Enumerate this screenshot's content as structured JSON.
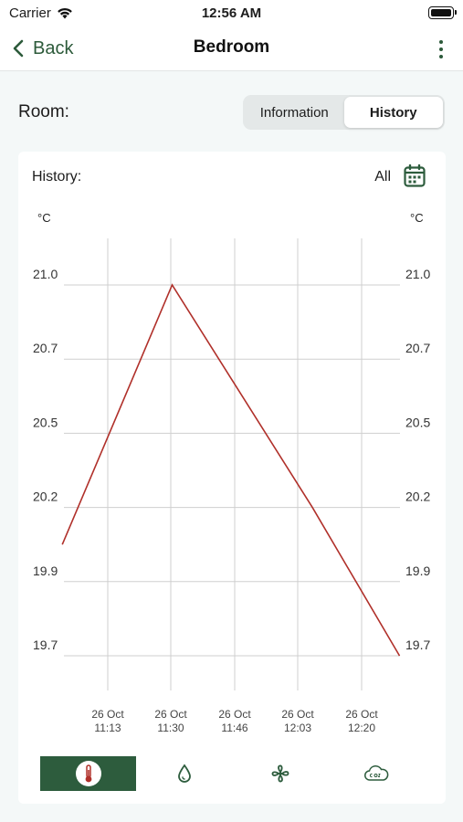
{
  "status_bar": {
    "carrier": "Carrier",
    "time": "12:56 AM"
  },
  "nav": {
    "back_label": "Back",
    "title": "Bedroom"
  },
  "room": {
    "label": "Room:",
    "segments": [
      {
        "label": "Information",
        "active": false
      },
      {
        "label": "History",
        "active": true
      }
    ]
  },
  "history": {
    "label": "History:",
    "range": "All"
  },
  "chart_data": {
    "type": "line",
    "left_unit": "°C",
    "right_unit": "°C",
    "y_ticks": [
      "21.0",
      "20.7",
      "20.5",
      "20.2",
      "19.9",
      "19.7"
    ],
    "x_ticks": [
      {
        "date": "26 Oct",
        "time": "11:13"
      },
      {
        "date": "26 Oct",
        "time": "11:30"
      },
      {
        "date": "26 Oct",
        "time": "11:46"
      },
      {
        "date": "26 Oct",
        "time": "12:03"
      },
      {
        "date": "26 Oct",
        "time": "12:20"
      }
    ],
    "series": [
      {
        "color": "#b0302a",
        "points": [
          {
            "x": "11:01",
            "y": 20.09
          },
          {
            "x": "11:30",
            "y": 21.0
          },
          {
            "x": "12:07",
            "y": 20.22
          },
          {
            "x": "12:30",
            "y": 19.7
          }
        ]
      }
    ],
    "grid": true
  },
  "tabs": [
    {
      "icon": "thermometer-icon",
      "active": true
    },
    {
      "icon": "humidity-drop-icon",
      "active": false
    },
    {
      "icon": "fan-icon",
      "active": false
    },
    {
      "icon": "co2-cloud-icon",
      "active": false
    }
  ],
  "colors": {
    "accent": "#2d5c3d",
    "line": "#b0302a"
  }
}
